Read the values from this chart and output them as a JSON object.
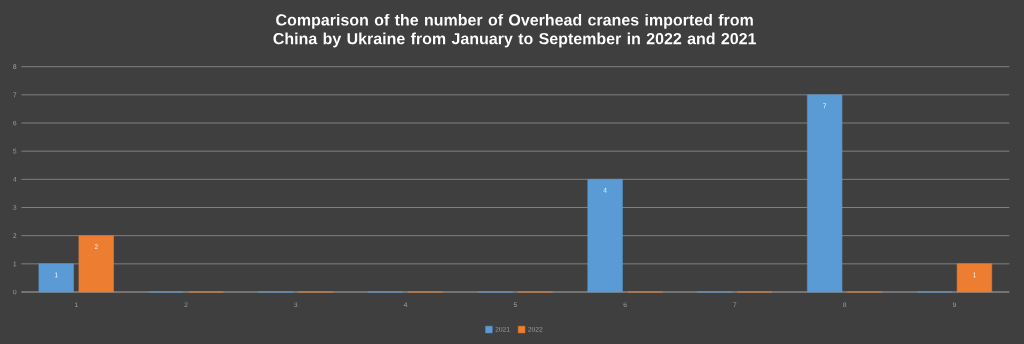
{
  "chart_data": {
    "type": "bar",
    "title": "Comparison of the number of Overhead cranes imported from China by Ukraine from January to September in 2022 and 2021",
    "categories": [
      "1",
      "2",
      "3",
      "4",
      "5",
      "6",
      "7",
      "8",
      "9"
    ],
    "series": [
      {
        "name": "2021",
        "color": "#5b9bd5",
        "values": [
          1,
          0,
          0,
          0,
          0,
          4,
          0,
          7,
          0
        ],
        "value_labels": [
          "1",
          null,
          null,
          null,
          null,
          "4",
          null,
          "7",
          null
        ]
      },
      {
        "name": "2022",
        "color": "#ed7d31",
        "values": [
          2,
          0,
          0,
          0,
          0,
          0,
          0,
          0,
          1
        ],
        "value_labels": [
          "2",
          null,
          null,
          null,
          null,
          null,
          null,
          null,
          "1"
        ]
      }
    ],
    "ylim": [
      0,
      8
    ],
    "yticks": [
      0,
      1,
      2,
      3,
      4,
      5,
      6,
      7,
      8
    ],
    "grid": "y",
    "legend": "bottom"
  }
}
